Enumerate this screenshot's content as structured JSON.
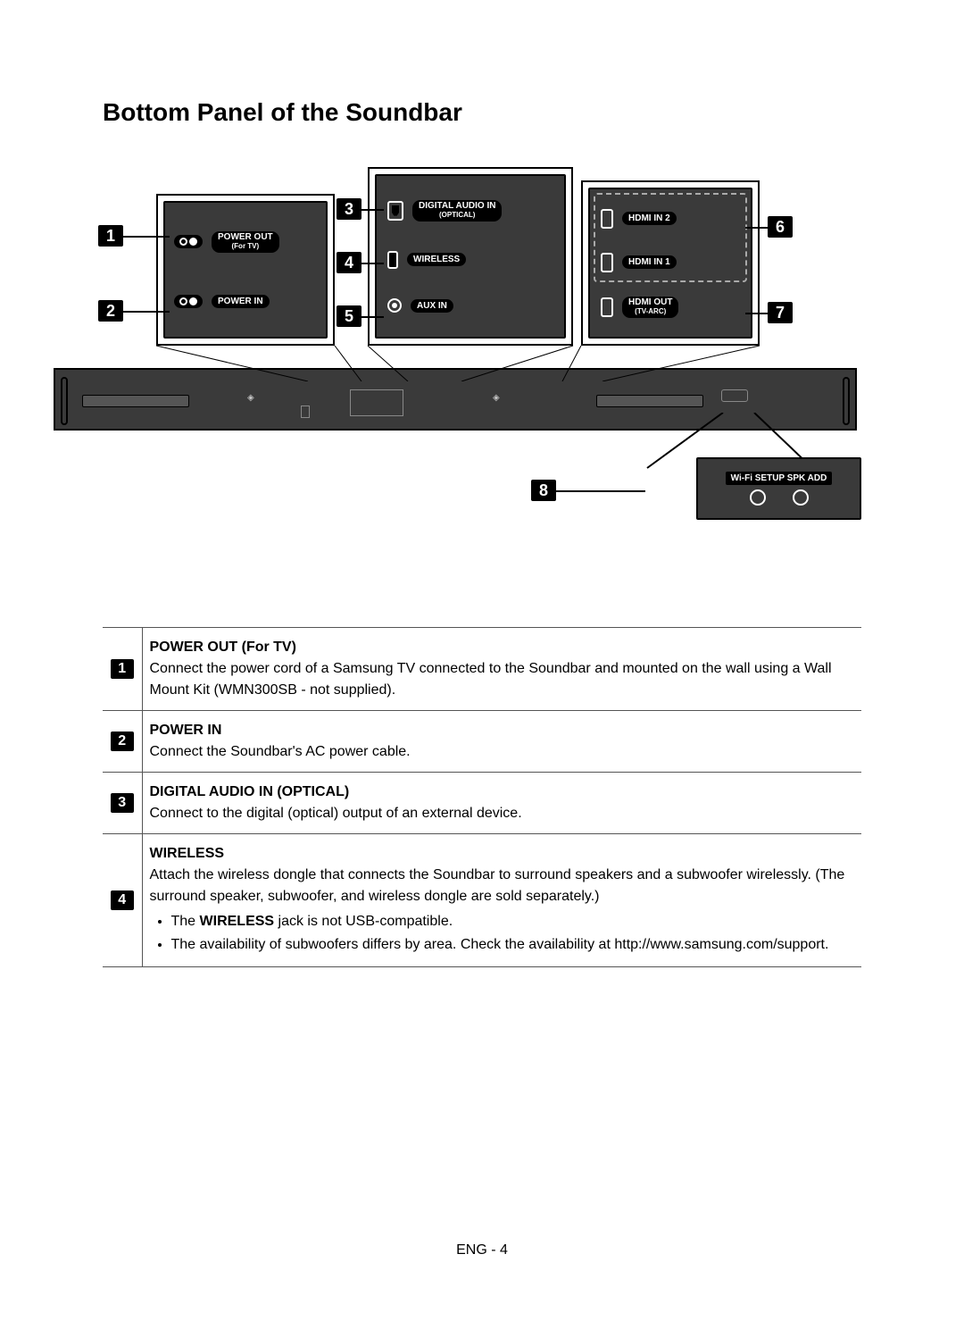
{
  "title": "Bottom Panel of the Soundbar",
  "page_number": "ENG - 4",
  "diagram": {
    "labels": {
      "power_out_line1": "POWER OUT",
      "power_out_line2": "(For TV)",
      "power_in": "POWER IN",
      "digital_audio_line1": "DIGITAL AUDIO IN",
      "digital_audio_line2": "(OPTICAL)",
      "wireless": "WIRELESS",
      "aux_in": "AUX IN",
      "hdmi_in2": "HDMI IN 2",
      "hdmi_in1": "HDMI IN 1",
      "hdmi_out_line1": "HDMI OUT",
      "hdmi_out_line2": "(TV-ARC)",
      "wifi_setup": "Wi-Fi SETUP  SPK ADD"
    },
    "callouts": {
      "c1": "1",
      "c2": "2",
      "c3": "3",
      "c4": "4",
      "c5": "5",
      "c6": "6",
      "c7": "7",
      "c8": "8"
    }
  },
  "rows": [
    {
      "num": "1",
      "heading": "POWER OUT (For TV)",
      "body": "Connect the power cord of a Samsung TV connected to the Soundbar and mounted on the wall using a Wall Mount Kit (WMN300SB - not supplied).",
      "bullets": []
    },
    {
      "num": "2",
      "heading": "POWER IN",
      "body": "Connect the Soundbar's AC power cable.",
      "bullets": []
    },
    {
      "num": "3",
      "heading": "DIGITAL AUDIO IN (OPTICAL)",
      "body": "Connect to the digital (optical) output of an external device.",
      "bullets": []
    },
    {
      "num": "4",
      "heading": "WIRELESS",
      "body": "Attach the wireless dongle that connects the Soundbar to surround speakers and a subwoofer wirelessly. (The surround speaker, subwoofer, and wireless dongle are sold separately.)",
      "bullets": [
        "The <b>WIRELESS</b> jack is not USB-compatible.",
        "The availability of subwoofers differs by area. Check the availability at http://www.samsung.com/support."
      ]
    }
  ],
  "colors": {
    "panel_fill": "#3a3a3a",
    "page_bg": "#ffffff",
    "text": "#000000",
    "badge_bg": "#000000",
    "badge_fg": "#ffffff",
    "border": "#555555"
  }
}
